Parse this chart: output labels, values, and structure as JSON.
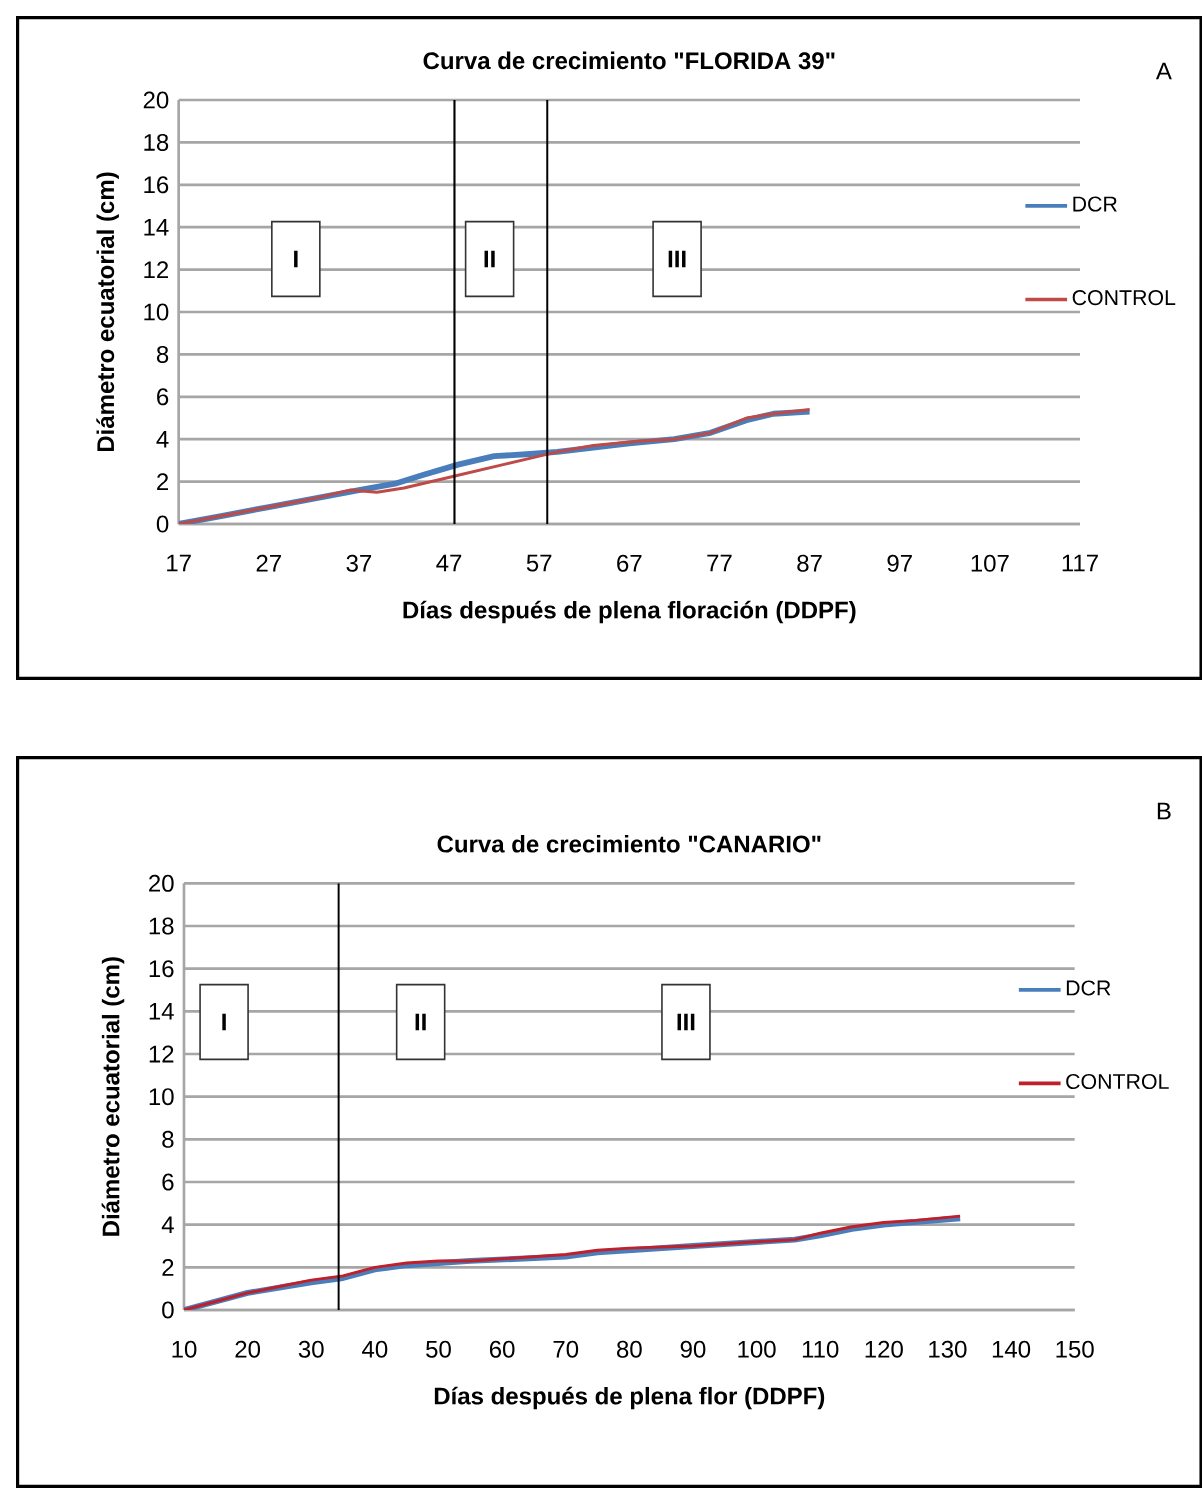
{
  "chart_data": [
    {
      "type": "line",
      "title": "Curva de crecimiento \"FLORIDA 39\"",
      "xlabel": "Días después de plena floración (DDPF)",
      "ylabel": "Diámetro ecuatorial (cm)",
      "xlim": [
        17,
        117
      ],
      "xticks": [
        17,
        27,
        37,
        47,
        57,
        67,
        77,
        87,
        97,
        107,
        117
      ],
      "ylim": [
        0,
        20
      ],
      "yticks": [
        0,
        2,
        4,
        6,
        8,
        10,
        12,
        14,
        16,
        18,
        20
      ],
      "grid": "y",
      "legend": "right",
      "series": [
        {
          "name": "DCR",
          "color": "#4a7ebb",
          "x": [
            17,
            22,
            27,
            32,
            37,
            41,
            44,
            48,
            52,
            56,
            59,
            63,
            67,
            72,
            76,
            80,
            83,
            87
          ],
          "values": [
            0,
            0.4,
            0.8,
            1.2,
            1.6,
            1.9,
            2.3,
            2.8,
            3.2,
            3.3,
            3.4,
            3.6,
            3.8,
            4.0,
            4.3,
            4.9,
            5.2,
            5.3
          ]
        },
        {
          "name": "CONTROL",
          "color": "#be4b48",
          "x": [
            17,
            22,
            27,
            32,
            36,
            39,
            42,
            48,
            53,
            59,
            63,
            68,
            72,
            76,
            80,
            83,
            87
          ],
          "values": [
            0,
            0.4,
            0.8,
            1.2,
            1.6,
            1.5,
            1.7,
            2.3,
            2.8,
            3.4,
            3.7,
            3.9,
            4.0,
            4.3,
            5.0,
            5.2,
            5.4
          ]
        }
      ],
      "ref_lines": [
        {
          "axis": "x",
          "value": 47.6,
          "color": "#000000"
        },
        {
          "axis": "x",
          "value": 57.9,
          "color": "#000000"
        }
      ],
      "annotations": [
        {
          "text": "I",
          "x": 30,
          "y": 12.5
        },
        {
          "text": "II",
          "x": 51.5,
          "y": 12.5
        },
        {
          "text": "III",
          "x": 72.3,
          "y": 12.5
        },
        "A"
      ]
    },
    {
      "type": "line",
      "title": "Curva de crecimiento \"CANARIO\"",
      "xlabel": "Días después de plena flor (DDPF)",
      "ylabel": "Diámetro ecuatorial (cm)",
      "xlim": [
        10,
        150
      ],
      "xticks": [
        10,
        20,
        30,
        40,
        50,
        60,
        70,
        80,
        90,
        100,
        110,
        120,
        130,
        140,
        150
      ],
      "ylim": [
        0,
        20
      ],
      "yticks": [
        0,
        2,
        4,
        6,
        8,
        10,
        12,
        14,
        16,
        18,
        20
      ],
      "grid": "y",
      "legend": "right",
      "series": [
        {
          "name": "DCR",
          "color": "#4a7ebb",
          "x": [
            10,
            20,
            30,
            35,
            40,
            45,
            55,
            70,
            75,
            90,
            106,
            110,
            115,
            120,
            132
          ],
          "values": [
            0,
            0.8,
            1.3,
            1.5,
            1.9,
            2.1,
            2.3,
            2.5,
            2.7,
            3.0,
            3.3,
            3.5,
            3.8,
            4.0,
            4.3
          ]
        },
        {
          "name": "CONTROL",
          "color": "#c0202a",
          "x": [
            10,
            15,
            20,
            25,
            30,
            35,
            40,
            45,
            50,
            55,
            60,
            65,
            70,
            75,
            80,
            90,
            100,
            106,
            110,
            115,
            120,
            125,
            132
          ],
          "values": [
            0,
            0.4,
            0.8,
            1.1,
            1.4,
            1.6,
            2.0,
            2.2,
            2.3,
            2.3,
            2.4,
            2.5,
            2.6,
            2.8,
            2.9,
            3.0,
            3.2,
            3.3,
            3.6,
            3.9,
            4.1,
            4.2,
            4.4
          ]
        }
      ],
      "ref_lines": [
        {
          "axis": "x",
          "value": 34.3,
          "color": "#000000"
        }
      ],
      "annotations": [
        {
          "text": "I",
          "x": 16.3,
          "y": 13.5
        },
        {
          "text": "II",
          "x": 47.2,
          "y": 13.5
        },
        {
          "text": "III",
          "x": 88.9,
          "y": 13.5
        },
        "B"
      ]
    }
  ]
}
